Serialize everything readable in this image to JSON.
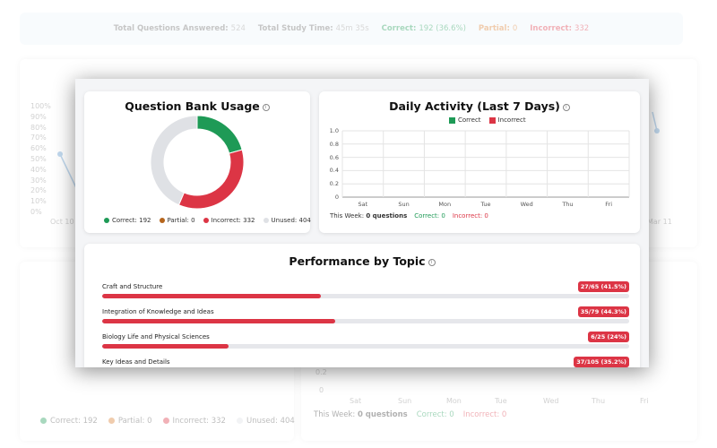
{
  "background": {
    "stats": {
      "total_questions_label": "Total Questions Answered:",
      "total_questions_value": "524",
      "study_time_label": "Total Study Time:",
      "study_time_value": "45m 35s",
      "correct_label": "Correct:",
      "correct_value": "192 (36.6%)",
      "partial_label": "Partial:",
      "partial_value": "0",
      "incorrect_label": "Incorrect:",
      "incorrect_value": "332"
    },
    "line_chart": {
      "y_ticks": [
        "100%",
        "90%",
        "80%",
        "70%",
        "60%",
        "50%",
        "40%",
        "30%",
        "20%",
        "10%",
        "0%"
      ],
      "x_start": "Oct 10",
      "x_end": "Mar 11"
    },
    "daily_chart": {
      "y_ticks": [
        "0.2",
        "0"
      ],
      "x_ticks": [
        "Sat",
        "Sun",
        "Mon",
        "Tue",
        "Wed",
        "Thu",
        "Fri"
      ],
      "week_label": "This Week:",
      "week_value": "0 questions",
      "week_correct": "Correct: 0",
      "week_incorrect": "Incorrect: 0"
    },
    "legend": {
      "correct": "Correct: 192",
      "partial": "Partial: 0",
      "incorrect": "Incorrect: 332",
      "unused": "Unused: 404"
    }
  },
  "modal": {
    "qbank": {
      "title": "Question Bank Usage",
      "info_icon": "i",
      "legend": {
        "correct": "Correct: 192",
        "partial": "Partial: 0",
        "incorrect": "Incorrect: 332",
        "unused": "Unused: 404"
      },
      "donut": [
        {
          "name": "Correct",
          "value": 192,
          "color": "#1e9a56"
        },
        {
          "name": "Partial",
          "value": 0,
          "color": "#b5651d"
        },
        {
          "name": "Incorrect",
          "value": 332,
          "color": "#dc3545"
        },
        {
          "name": "Unused",
          "value": 404,
          "color": "#dfe1e5"
        }
      ]
    },
    "daily": {
      "title": "Daily Activity (Last 7 Days)",
      "info_icon": "i",
      "legend_correct": "Correct",
      "legend_incorrect": "Incorrect",
      "week_label": "This Week:",
      "week_value": "0 questions",
      "week_correct": "Correct: 0",
      "week_incorrect": "Incorrect: 0"
    },
    "topics": {
      "title": "Performance by Topic",
      "info_icon": "i",
      "items": [
        {
          "name": "Craft and Structure",
          "badge": "27/65 (41.5%)",
          "fraction": 0.415
        },
        {
          "name": "Integration of Knowledge and Ideas",
          "badge": "35/79 (44.3%)",
          "fraction": 0.443
        },
        {
          "name": "Biology Life and Physical Sciences",
          "badge": "6/25 (24%)",
          "fraction": 0.24
        },
        {
          "name": "Key Ideas and Details",
          "badge": "37/105 (35.2%)",
          "fraction": 0.352
        }
      ]
    }
  },
  "colors": {
    "correct": "#1e9a56",
    "partial": "#b5651d",
    "incorrect": "#dc3545",
    "unused": "#dfe1e5"
  },
  "chart_data": {
    "type": "bar",
    "title": "Daily Activity (Last 7 Days)",
    "categories": [
      "Sat",
      "Sun",
      "Mon",
      "Tue",
      "Wed",
      "Thu",
      "Fri"
    ],
    "series": [
      {
        "name": "Correct",
        "values": [
          0,
          0,
          0,
          0,
          0,
          0,
          0
        ]
      },
      {
        "name": "Incorrect",
        "values": [
          0,
          0,
          0,
          0,
          0,
          0,
          0
        ]
      }
    ],
    "y_ticks": [
      "1.0",
      "0.8",
      "0.6",
      "0.4",
      "0.2",
      "0"
    ],
    "ylim": [
      0,
      1
    ],
    "grid": true,
    "legend": "top-center"
  }
}
